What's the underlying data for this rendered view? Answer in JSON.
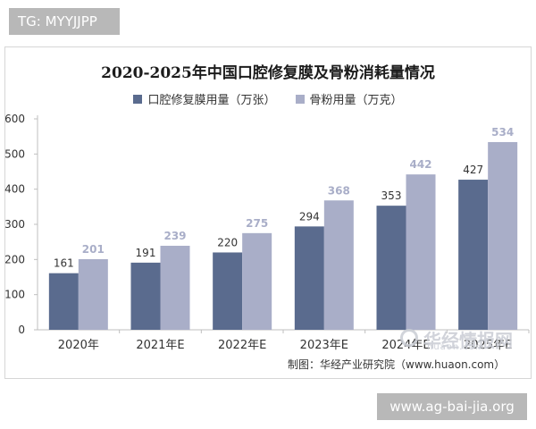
{
  "tag": "TG: MYYJJPP",
  "site_badge": "www.ag-bai-jia.org",
  "source": "制图：华经产业研究院（www.huaon.com）",
  "watermark": {
    "text": "华经情报网",
    "subtext": "huaon.com"
  },
  "colors": {
    "series1": "#5a6b8e",
    "series2": "#a9aec8",
    "axis": "#bfbfbf",
    "text": "#333333"
  },
  "chart_data": {
    "type": "bar",
    "title": "2020-2025年中国口腔修复膜及骨粉消耗量情况",
    "categories": [
      "2020年",
      "2021年E",
      "2022年E",
      "2023年E",
      "2024年E",
      "2025年E"
    ],
    "series": [
      {
        "name": "口腔修复膜用量（万张）",
        "values": [
          161,
          191,
          220,
          294,
          353,
          427
        ]
      },
      {
        "name": "骨粉用量（万克）",
        "values": [
          201,
          239,
          275,
          368,
          442,
          534
        ]
      }
    ],
    "yticks": [
      0,
      100,
      200,
      300,
      400,
      500,
      600
    ],
    "ylim": [
      0,
      600
    ],
    "legend_position": "top",
    "grid": false
  }
}
